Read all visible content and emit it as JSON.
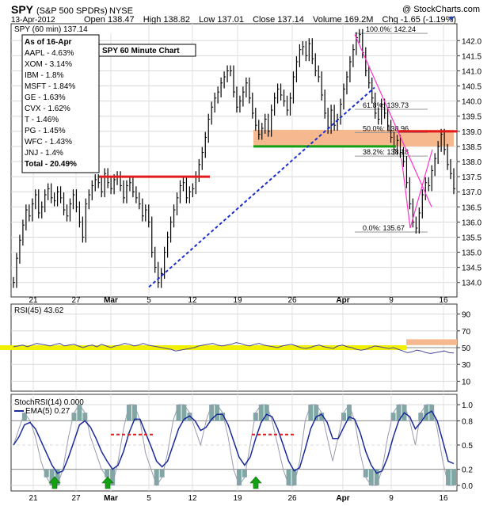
{
  "header": {
    "symbol": "SPY",
    "name": "(S&P 500 SPDRs)",
    "exchange": "NYSE",
    "watermark": "@ StockCharts.com",
    "date": "13-Apr-2012",
    "open_label": "Open",
    "open": "138.47",
    "high_label": "High",
    "high": "138.82",
    "low_label": "Low",
    "low": "137.01",
    "close_label": "Close",
    "close": "137.14",
    "volume_label": "Volume",
    "volume": "169.2M",
    "chg_label": "Chg",
    "chg": "-1.65 (-1.19%)"
  },
  "price_panel": {
    "legend": "SPY (60 min) 137.14",
    "table_title": "As of 16-Apr",
    "weights": [
      "AAPL - 4.63%",
      "XOM - 3.14%",
      "IBM - 1.8%",
      "MSFT - 1.84%",
      "GE - 1.63%",
      "CVX - 1.62%",
      "T - 1.46%",
      "PG - 1.45%",
      "WFC - 1.43%",
      "JNJ - 1.4%",
      "Total - 20.49%"
    ],
    "annotation": "SPY 60 Minute Chart",
    "fib_labels": [
      "100.0%: 142.24",
      "61.8%: 139.73",
      "50.0%: 138.96",
      "38.2%: 138.18",
      "0.0%: 135.67"
    ]
  },
  "rsi_panel": {
    "legend": "RSI(45) 43.62"
  },
  "stoch_panel": {
    "legend": "StochRSI(14) 0.000",
    "legend2": "EMA(5) 0.27"
  },
  "colors": {
    "price": "#000000",
    "support_red": "#e31a1c",
    "trend_blue": "#1b2fd0",
    "green": "#13a013",
    "orange_zone": "#f6b98f",
    "magenta": "#ff33cc",
    "yellow": "#f0f000",
    "stoch_fill": "#7fa8a4",
    "stoch_line": "#1a2a9a",
    "arrow_green": "#13a013"
  },
  "chart_data": [
    {
      "type": "line",
      "title": "SPY (60 min)",
      "ylim": [
        133.6,
        142.4
      ],
      "y_ticks": [
        134.0,
        134.5,
        135.0,
        135.5,
        136.0,
        136.5,
        137.0,
        137.5,
        138.0,
        138.5,
        139.0,
        139.5,
        140.0,
        140.5,
        141.0,
        141.5,
        142.0
      ],
      "x_ticks": [
        "21",
        "27",
        "Mar",
        "5",
        "12",
        "19",
        "26",
        "Apr",
        "9",
        "16"
      ],
      "x": [
        0,
        1,
        2,
        3,
        4,
        5,
        6,
        7,
        8,
        9,
        10,
        11,
        12,
        13,
        14,
        15,
        16,
        17,
        18,
        19,
        20,
        21,
        22,
        23,
        24,
        25,
        26,
        27,
        28,
        29,
        30,
        31,
        32,
        33,
        34,
        35,
        36,
        37,
        38,
        39,
        40,
        41,
        42,
        43,
        44,
        45,
        46,
        47,
        48,
        49,
        50,
        51,
        52,
        53,
        54,
        55,
        56,
        57,
        58,
        59,
        60,
        61,
        62,
        63,
        64,
        65,
        66,
        67,
        68,
        69,
        70,
        71,
        72,
        73,
        74,
        75,
        76,
        77,
        78,
        79,
        80,
        81,
        82,
        83,
        84,
        85,
        86,
        87,
        88,
        89,
        90,
        91,
        92,
        93,
        94,
        95,
        96,
        97,
        98,
        99,
        100,
        101,
        102,
        103,
        104,
        105,
        106,
        107,
        108,
        109,
        110,
        111,
        112,
        113,
        114,
        115,
        116,
        117,
        118,
        119,
        120,
        121,
        122,
        123,
        124,
        125,
        126,
        127,
        128,
        129,
        130,
        131,
        132,
        133,
        134,
        135,
        136,
        137,
        138,
        139,
        140
      ],
      "series": [
        {
          "values": [
            134.0,
            134.8,
            135.4,
            135.9,
            136.4,
            136.2,
            136.6,
            136.9,
            136.3,
            136.5,
            136.9,
            137.1,
            136.8,
            136.7,
            137.0,
            136.8,
            136.4,
            136.2,
            136.6,
            136.9,
            136.5,
            136.0,
            135.5,
            136.6,
            136.9,
            137.2,
            137.4,
            137.3,
            137.0,
            137.6,
            137.3,
            137.1,
            137.4,
            137.5,
            137.2,
            136.8,
            137.2,
            137.3,
            137.0,
            136.8,
            136.6,
            136.2,
            136.4,
            136.0,
            135.0,
            134.5,
            134.0,
            134.3,
            135.0,
            135.5,
            136.0,
            136.4,
            136.8,
            137.2,
            137.3,
            136.8,
            137.0,
            137.1,
            137.5,
            137.9,
            138.3,
            138.8,
            139.4,
            139.8,
            140.1,
            140.3,
            140.6,
            140.8,
            141.0,
            141.0,
            140.3,
            139.8,
            140.0,
            140.3,
            140.6,
            140.1,
            139.6,
            139.2,
            138.9,
            139.1,
            139.4,
            139.0,
            139.7,
            140.1,
            140.4,
            140.2,
            140.0,
            139.7,
            140.1,
            140.8,
            141.3,
            141.7,
            141.8,
            141.5,
            141.9,
            141.4,
            141.0,
            140.8,
            140.2,
            139.6,
            139.1,
            139.7,
            139.2,
            139.4,
            139.9,
            140.4,
            140.8,
            141.3,
            141.7,
            142.1,
            142.2,
            141.6,
            141.0,
            140.6,
            140.1,
            139.6,
            139.4,
            139.9,
            139.6,
            139.2,
            138.8,
            138.4,
            138.7,
            138.3,
            138.0,
            137.3,
            136.6,
            136.0,
            135.8,
            136.3,
            136.9,
            137.3,
            137.2,
            137.7,
            138.1,
            138.5,
            138.9,
            138.4,
            137.9,
            137.6,
            137.1
          ]
        }
      ],
      "lines": [
        {
          "name": "support",
          "y": 137.5
        },
        {
          "name": "green-support",
          "y": 138.5
        },
        {
          "name": "resistance",
          "y": 139.0
        }
      ]
    },
    {
      "type": "line",
      "title": "RSI(45)",
      "ylim": [
        0,
        100
      ],
      "y_ticks": [
        10,
        30,
        50,
        70,
        90
      ],
      "series": [
        {
          "values": [
            51,
            52,
            53,
            51,
            53,
            55,
            54,
            53,
            52,
            54,
            55,
            52,
            53,
            54,
            52,
            50,
            52,
            53,
            51,
            54,
            52,
            50,
            52,
            53,
            55,
            54,
            52,
            53,
            55,
            53,
            52,
            51,
            50,
            49,
            48,
            46,
            47,
            48,
            49,
            50,
            52,
            53,
            54,
            55,
            53,
            52,
            53,
            54,
            56,
            55,
            53,
            52,
            54,
            55,
            53,
            52,
            51,
            50,
            52,
            53,
            54,
            52,
            50,
            49,
            50,
            52,
            53,
            51,
            50,
            49,
            52,
            53,
            51,
            50,
            48,
            47,
            48,
            50,
            52,
            51,
            50,
            49,
            50,
            48,
            46,
            44,
            45,
            47,
            46,
            44,
            43,
            44,
            45,
            46,
            44,
            43.6
          ]
        }
      ]
    },
    {
      "type": "area",
      "title": "StochRSI(14)",
      "ylim": [
        0,
        1
      ],
      "y_ticks": [
        0.0,
        0.2,
        0.5,
        0.8,
        1.0
      ],
      "series": [
        {
          "name": "StochRSI(14)",
          "values": [
            0.5,
            0.7,
            0.9,
            0.8,
            0.6,
            0.3,
            0.1,
            0.0,
            0.0,
            0.2,
            0.6,
            0.9,
            1.0,
            0.9,
            0.6,
            0.4,
            0.2,
            0.1,
            0.0,
            0.3,
            0.7,
            1.0,
            1.0,
            0.8,
            0.4,
            0.2,
            0.0,
            0.1,
            0.4,
            0.8,
            1.0,
            1.0,
            0.9,
            0.7,
            0.5,
            0.8,
            1.0,
            1.0,
            0.9,
            0.6,
            0.2,
            0.0,
            0.1,
            0.5,
            0.9,
            1.0,
            1.0,
            0.8,
            0.5,
            0.2,
            0.0,
            0.0,
            0.3,
            0.8,
            1.0,
            1.0,
            0.9,
            0.6,
            0.3,
            0.6,
            0.9,
            1.0,
            0.8,
            0.4,
            0.1,
            0.0,
            0.0,
            0.2,
            0.6,
            0.9,
            1.0,
            1.0,
            0.8,
            0.5,
            0.9,
            1.0,
            1.0,
            0.7,
            0.3,
            0.0,
            0.0
          ]
        },
        {
          "name": "EMA(5)",
          "values": [
            0.5,
            0.6,
            0.75,
            0.78,
            0.7,
            0.55,
            0.4,
            0.25,
            0.15,
            0.18,
            0.35,
            0.55,
            0.75,
            0.8,
            0.72,
            0.58,
            0.42,
            0.3,
            0.2,
            0.25,
            0.42,
            0.65,
            0.82,
            0.82,
            0.65,
            0.48,
            0.3,
            0.23,
            0.3,
            0.5,
            0.7,
            0.82,
            0.86,
            0.8,
            0.68,
            0.72,
            0.82,
            0.88,
            0.88,
            0.75,
            0.55,
            0.35,
            0.25,
            0.35,
            0.58,
            0.78,
            0.88,
            0.85,
            0.7,
            0.5,
            0.3,
            0.18,
            0.22,
            0.45,
            0.7,
            0.85,
            0.88,
            0.78,
            0.58,
            0.58,
            0.72,
            0.85,
            0.82,
            0.65,
            0.42,
            0.25,
            0.15,
            0.18,
            0.35,
            0.6,
            0.8,
            0.9,
            0.85,
            0.7,
            0.78,
            0.88,
            0.92,
            0.8,
            0.55,
            0.3,
            0.27
          ]
        }
      ]
    }
  ]
}
